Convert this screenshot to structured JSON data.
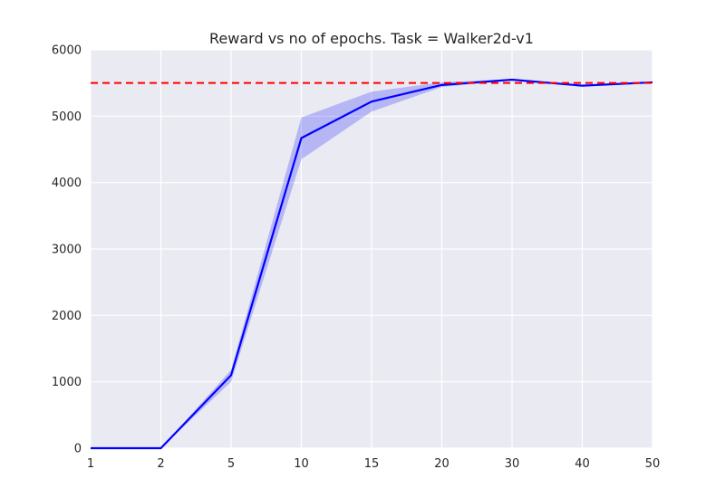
{
  "chart_data": {
    "type": "line",
    "title": "Reward vs no of epochs. Task = Walker2d-v1",
    "xlabel": "",
    "ylabel": "",
    "categories": [
      "1",
      "2",
      "5",
      "10",
      "15",
      "20",
      "30",
      "40",
      "50"
    ],
    "ylim": [
      0,
      6000
    ],
    "yticks": [
      0,
      1000,
      2000,
      3000,
      4000,
      5000,
      6000
    ],
    "grid": true,
    "legend": "none",
    "series": [
      {
        "values": [
          0,
          0,
          1100,
          4670,
          5220,
          5470,
          5550,
          5460,
          5510
        ],
        "lower": [
          0,
          0,
          1000,
          4350,
          5070,
          5440,
          5540,
          5450,
          5500
        ],
        "upper": [
          0,
          0,
          1180,
          4980,
          5370,
          5510,
          5560,
          5470,
          5520
        ],
        "color": "#0000ff",
        "band_color": "#0000ff"
      }
    ],
    "reference_line": {
      "y": 5500,
      "color": "#ff0000",
      "style": "dashed"
    },
    "background_color": "#eaeaf2",
    "grid_color": "#ffffff"
  }
}
